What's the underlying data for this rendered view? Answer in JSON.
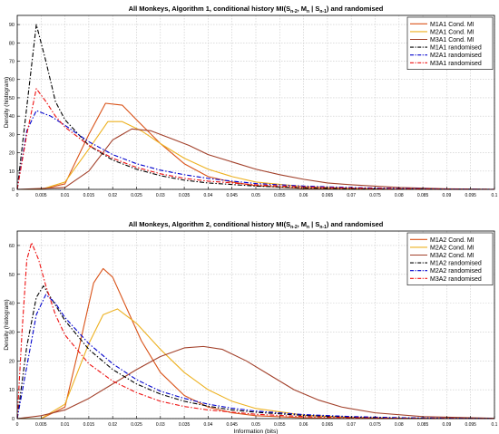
{
  "chart_data": [
    {
      "type": "line",
      "title_pre": "All Monkeys, Algorithm 1, conditional history MI(S",
      "title_sub1": "n-2",
      "title_mid1": ", M",
      "title_sub2": "n",
      "title_mid2": " | S",
      "title_sub3": "n-1",
      "title_post": ") and randomised",
      "ylabel": "Density (histogram)",
      "xlabel": "",
      "xlim": [
        0,
        0.1
      ],
      "ylim": [
        0,
        95
      ],
      "x_ticks": [
        "0",
        "0.005",
        "0.01",
        "0.015",
        "0.02",
        "0.025",
        "0.03",
        "0.035",
        "0.04",
        "0.045",
        "0.05",
        "0.055",
        "0.06",
        "0.065",
        "0.07",
        "0.075",
        "0.08",
        "0.085",
        "0.09",
        "0.095",
        "0.1"
      ],
      "y_ticks": [
        "0",
        "10",
        "20",
        "30",
        "40",
        "50",
        "60",
        "70",
        "80",
        "90"
      ],
      "grid": true,
      "legend_position": "top-right",
      "series": [
        {
          "name": "M1A1 Cond. MI",
          "color": "#d95319",
          "dash": "solid",
          "points": [
            [
              0,
              0
            ],
            [
              0.005,
              0
            ],
            [
              0.01,
              3
            ],
            [
              0.015,
              30
            ],
            [
              0.0185,
              47
            ],
            [
              0.022,
              46
            ],
            [
              0.025,
              38
            ],
            [
              0.03,
              25
            ],
            [
              0.035,
              14
            ],
            [
              0.04,
              7
            ],
            [
              0.045,
              4
            ],
            [
              0.05,
              2
            ],
            [
              0.06,
              0.5
            ],
            [
              0.07,
              0
            ],
            [
              0.1,
              0
            ]
          ]
        },
        {
          "name": "M2A1 Cond. MI",
          "color": "#edb120",
          "dash": "solid",
          "points": [
            [
              0,
              0
            ],
            [
              0.005,
              0
            ],
            [
              0.01,
              4
            ],
            [
              0.015,
              22
            ],
            [
              0.019,
              37
            ],
            [
              0.022,
              37
            ],
            [
              0.026,
              32
            ],
            [
              0.03,
              25
            ],
            [
              0.035,
              17
            ],
            [
              0.04,
              11
            ],
            [
              0.045,
              7
            ],
            [
              0.05,
              4
            ],
            [
              0.06,
              1.5
            ],
            [
              0.07,
              0.5
            ],
            [
              0.08,
              0
            ],
            [
              0.1,
              0
            ]
          ]
        },
        {
          "name": "M3A1 Cond. MI",
          "color": "#a2402a",
          "dash": "solid",
          "points": [
            [
              0,
              0
            ],
            [
              0.01,
              1
            ],
            [
              0.015,
              10
            ],
            [
              0.02,
              27
            ],
            [
              0.024,
              33
            ],
            [
              0.028,
              32
            ],
            [
              0.032,
              28
            ],
            [
              0.036,
              24
            ],
            [
              0.04,
              19
            ],
            [
              0.045,
              15
            ],
            [
              0.05,
              11
            ],
            [
              0.055,
              8
            ],
            [
              0.06,
              5.5
            ],
            [
              0.065,
              3.5
            ],
            [
              0.07,
              2.5
            ],
            [
              0.08,
              1
            ],
            [
              0.09,
              0.3
            ],
            [
              0.1,
              0
            ]
          ]
        },
        {
          "name": "M1A1 randomised",
          "color": "#000000",
          "dash": "dashdot",
          "points": [
            [
              0,
              0
            ],
            [
              0.002,
              45
            ],
            [
              0.004,
              90
            ],
            [
              0.006,
              70
            ],
            [
              0.008,
              48
            ],
            [
              0.01,
              38
            ],
            [
              0.015,
              24
            ],
            [
              0.02,
              16
            ],
            [
              0.025,
              11
            ],
            [
              0.03,
              7.5
            ],
            [
              0.035,
              5
            ],
            [
              0.04,
              3.5
            ],
            [
              0.05,
              1.8
            ],
            [
              0.06,
              0.8
            ],
            [
              0.07,
              0.4
            ],
            [
              0.08,
              0.1
            ],
            [
              0.1,
              0
            ]
          ]
        },
        {
          "name": "M2A1 randomised",
          "color": "#0000cc",
          "dash": "dashdot",
          "points": [
            [
              0,
              0
            ],
            [
              0.002,
              32
            ],
            [
              0.004,
              43
            ],
            [
              0.007,
              40
            ],
            [
              0.01,
              35
            ],
            [
              0.015,
              26
            ],
            [
              0.02,
              19
            ],
            [
              0.025,
              14
            ],
            [
              0.03,
              10.5
            ],
            [
              0.035,
              8
            ],
            [
              0.04,
              6
            ],
            [
              0.045,
              4.5
            ],
            [
              0.05,
              3.2
            ],
            [
              0.06,
              1.8
            ],
            [
              0.07,
              1
            ],
            [
              0.08,
              0.5
            ],
            [
              0.09,
              0.2
            ],
            [
              0.1,
              0
            ]
          ]
        },
        {
          "name": "M3A1 randomised",
          "color": "#ee1111",
          "dash": "dashdot",
          "points": [
            [
              0,
              0
            ],
            [
              0.002,
              30
            ],
            [
              0.004,
              55
            ],
            [
              0.006,
              48
            ],
            [
              0.008,
              40
            ],
            [
              0.01,
              34
            ],
            [
              0.015,
              24
            ],
            [
              0.02,
              17
            ],
            [
              0.025,
              12
            ],
            [
              0.03,
              8.5
            ],
            [
              0.035,
              6
            ],
            [
              0.04,
              4.5
            ],
            [
              0.05,
              2.5
            ],
            [
              0.06,
              1.3
            ],
            [
              0.07,
              0.7
            ],
            [
              0.08,
              0.3
            ],
            [
              0.1,
              0
            ]
          ]
        }
      ]
    },
    {
      "type": "line",
      "title_pre": "All Monkeys, Algorithm 2, conditional history MI(S",
      "title_sub1": "n-2",
      "title_mid1": ", M",
      "title_sub2": "n",
      "title_mid2": " | S",
      "title_sub3": "n-1",
      "title_post": ") and randomised",
      "ylabel": "Density (histogram)",
      "xlabel": "Information (bits)",
      "xlim": [
        0,
        0.1
      ],
      "ylim": [
        0,
        65
      ],
      "x_ticks": [
        "0",
        "0.005",
        "0.01",
        "0.015",
        "0.02",
        "0.025",
        "0.03",
        "0.035",
        "0.04",
        "0.045",
        "0.05",
        "0.055",
        "0.06",
        "0.065",
        "0.07",
        "0.075",
        "0.08",
        "0.085",
        "0.09",
        "0.095",
        "0.1"
      ],
      "y_ticks": [
        "0",
        "10",
        "20",
        "30",
        "40",
        "50",
        "60"
      ],
      "grid": true,
      "legend_position": "top-right",
      "series": [
        {
          "name": "M1A2 Cond. MI",
          "color": "#d95319",
          "dash": "solid",
          "points": [
            [
              0,
              0
            ],
            [
              0.005,
              0
            ],
            [
              0.01,
              4
            ],
            [
              0.013,
              25
            ],
            [
              0.016,
              47
            ],
            [
              0.018,
              52
            ],
            [
              0.02,
              49
            ],
            [
              0.023,
              38
            ],
            [
              0.026,
              27
            ],
            [
              0.03,
              16
            ],
            [
              0.035,
              8
            ],
            [
              0.04,
              4
            ],
            [
              0.045,
              2
            ],
            [
              0.05,
              1
            ],
            [
              0.06,
              0.3
            ],
            [
              0.07,
              0
            ],
            [
              0.1,
              0
            ]
          ]
        },
        {
          "name": "M2A2 Cond. MI",
          "color": "#edb120",
          "dash": "solid",
          "points": [
            [
              0,
              0
            ],
            [
              0.005,
              0
            ],
            [
              0.01,
              5
            ],
            [
              0.015,
              26
            ],
            [
              0.018,
              36
            ],
            [
              0.021,
              38
            ],
            [
              0.025,
              33
            ],
            [
              0.03,
              24
            ],
            [
              0.035,
              16
            ],
            [
              0.04,
              10
            ],
            [
              0.045,
              6
            ],
            [
              0.05,
              3.5
            ],
            [
              0.06,
              1.2
            ],
            [
              0.07,
              0.4
            ],
            [
              0.08,
              0.1
            ],
            [
              0.1,
              0
            ]
          ]
        },
        {
          "name": "M3A2 Cond. MI",
          "color": "#a2402a",
          "dash": "solid",
          "points": [
            [
              0,
              0
            ],
            [
              0.005,
              1
            ],
            [
              0.01,
              3
            ],
            [
              0.015,
              7
            ],
            [
              0.02,
              12
            ],
            [
              0.025,
              17
            ],
            [
              0.03,
              21.5
            ],
            [
              0.035,
              24.5
            ],
            [
              0.039,
              25
            ],
            [
              0.043,
              24
            ],
            [
              0.048,
              20
            ],
            [
              0.053,
              15
            ],
            [
              0.058,
              10
            ],
            [
              0.063,
              6.5
            ],
            [
              0.068,
              4
            ],
            [
              0.075,
              2
            ],
            [
              0.085,
              0.7
            ],
            [
              0.1,
              0.1
            ]
          ]
        },
        {
          "name": "M1A2 randomised",
          "color": "#000000",
          "dash": "dashdot",
          "points": [
            [
              0,
              0
            ],
            [
              0.002,
              25
            ],
            [
              0.004,
              42
            ],
            [
              0.0055,
              46
            ],
            [
              0.007,
              42
            ],
            [
              0.01,
              34
            ],
            [
              0.015,
              24
            ],
            [
              0.02,
              17
            ],
            [
              0.025,
              12
            ],
            [
              0.03,
              8.5
            ],
            [
              0.035,
              6
            ],
            [
              0.04,
              4.3
            ],
            [
              0.045,
              3
            ],
            [
              0.05,
              2.2
            ],
            [
              0.06,
              1.1
            ],
            [
              0.07,
              0.5
            ],
            [
              0.08,
              0.2
            ],
            [
              0.1,
              0
            ]
          ]
        },
        {
          "name": "M2A2 randomised",
          "color": "#0000cc",
          "dash": "dashdot",
          "points": [
            [
              0,
              0
            ],
            [
              0.002,
              18
            ],
            [
              0.004,
              36
            ],
            [
              0.006,
              43
            ],
            [
              0.008,
              40
            ],
            [
              0.01,
              35
            ],
            [
              0.015,
              26
            ],
            [
              0.02,
              19
            ],
            [
              0.025,
              13.5
            ],
            [
              0.03,
              9.5
            ],
            [
              0.035,
              7
            ],
            [
              0.04,
              5
            ],
            [
              0.045,
              3.6
            ],
            [
              0.05,
              2.6
            ],
            [
              0.06,
              1.4
            ],
            [
              0.07,
              0.7
            ],
            [
              0.08,
              0.3
            ],
            [
              0.1,
              0
            ]
          ]
        },
        {
          "name": "M3A2 randomised",
          "color": "#ee1111",
          "dash": "dashdot",
          "points": [
            [
              0,
              0
            ],
            [
              0.001,
              30
            ],
            [
              0.002,
              55
            ],
            [
              0.003,
              61
            ],
            [
              0.0045,
              55
            ],
            [
              0.006,
              46
            ],
            [
              0.008,
              36
            ],
            [
              0.01,
              29
            ],
            [
              0.015,
              19
            ],
            [
              0.02,
              13
            ],
            [
              0.025,
              9
            ],
            [
              0.03,
              6
            ],
            [
              0.035,
              4.2
            ],
            [
              0.04,
              3
            ],
            [
              0.05,
              1.5
            ],
            [
              0.06,
              0.7
            ],
            [
              0.07,
              0.3
            ],
            [
              0.08,
              0.1
            ],
            [
              0.1,
              0
            ]
          ]
        }
      ]
    }
  ]
}
